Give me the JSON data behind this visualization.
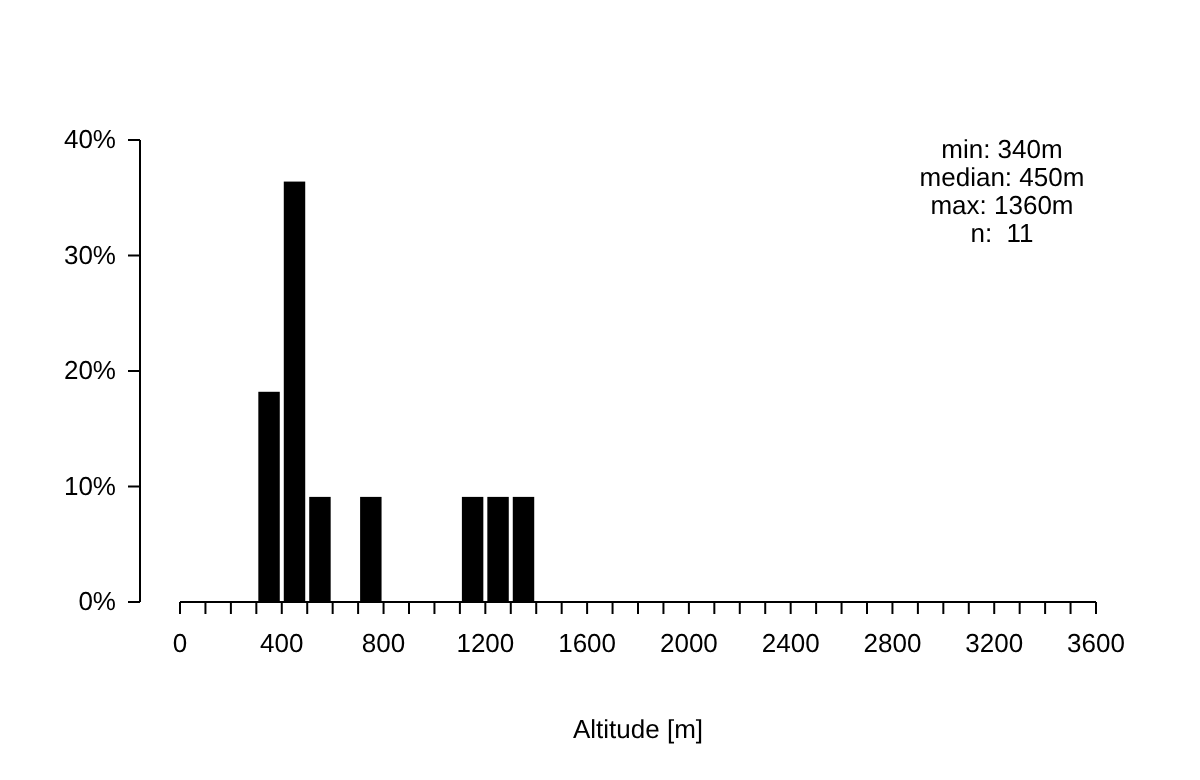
{
  "chart_data": {
    "type": "histogram",
    "xlabel": "Altitude [m]",
    "bins": [
      300,
      400,
      500,
      600,
      700,
      800,
      900,
      1000,
      1100,
      1200,
      1300,
      1400
    ],
    "values": [
      18.2,
      36.4,
      9.1,
      0,
      9.1,
      0,
      0,
      0,
      9.1,
      9.1,
      9.1
    ],
    "color": "#000000",
    "xlim": [
      0,
      3600
    ],
    "xticks": [
      0,
      {
        "value": 100,
        "label": null
      },
      {
        "value": 200,
        "label": null
      },
      {
        "value": 300,
        "label": null
      },
      400,
      {
        "value": 500,
        "label": null
      },
      {
        "value": 600,
        "label": null
      },
      {
        "value": 700,
        "label": null
      },
      800,
      {
        "value": 900,
        "label": null
      },
      {
        "value": 1000,
        "label": null
      },
      {
        "value": 1100,
        "label": null
      },
      1200,
      {
        "value": 1300,
        "label": null
      },
      {
        "value": 1400,
        "label": null
      },
      {
        "value": 1500,
        "label": null
      },
      1600,
      {
        "value": 1700,
        "label": null
      },
      {
        "value": 1800,
        "label": null
      },
      {
        "value": 1900,
        "label": null
      },
      2000,
      {
        "value": 2100,
        "label": null
      },
      {
        "value": 2200,
        "label": null
      },
      {
        "value": 2300,
        "label": null
      },
      2400,
      {
        "value": 2500,
        "label": null
      },
      {
        "value": 2600,
        "label": null
      },
      {
        "value": 2700,
        "label": null
      },
      2800,
      {
        "value": 2900,
        "label": null
      },
      {
        "value": 3000,
        "label": null
      },
      {
        "value": 3100,
        "label": null
      },
      3200,
      {
        "value": 3300,
        "label": null
      },
      {
        "value": 3400,
        "label": null
      },
      {
        "value": 3500,
        "label": null
      },
      3600
    ],
    "ylim": [
      0,
      40
    ],
    "yticks": [
      {
        "value": 0,
        "label": "0%"
      },
      {
        "value": 10,
        "label": "10%"
      },
      {
        "value": 20,
        "label": "20%"
      },
      {
        "value": 30,
        "label": "30%"
      },
      {
        "value": 40,
        "label": "40%"
      }
    ],
    "annotations": [
      "min: 340m",
      "median: 450m",
      "max: 1360m",
      "n:  11"
    ]
  }
}
